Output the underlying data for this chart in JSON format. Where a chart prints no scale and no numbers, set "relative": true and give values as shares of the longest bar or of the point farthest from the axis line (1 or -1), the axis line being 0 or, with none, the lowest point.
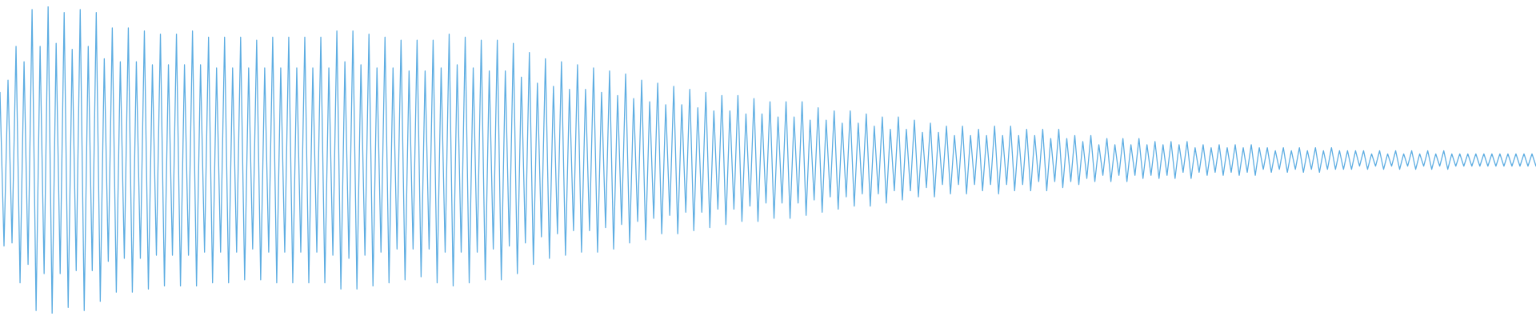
{
  "chart_data": {
    "type": "line",
    "relative": true,
    "color": "#5dade2",
    "categories": [
      null,
      null,
      null,
      null,
      null,
      null,
      null,
      null,
      null,
      null,
      null,
      null,
      null,
      null,
      null,
      null,
      null,
      null,
      null,
      null,
      null,
      null,
      null,
      null,
      null,
      null,
      null,
      null,
      null,
      null,
      null,
      null,
      null,
      null,
      null,
      null,
      null,
      null,
      null,
      null,
      null,
      null,
      null,
      null,
      null,
      null,
      null,
      null,
      null,
      null,
      null,
      null,
      null,
      null,
      null,
      null,
      null,
      null,
      null,
      null,
      null,
      null,
      null,
      null,
      null,
      null,
      null,
      null,
      null,
      null,
      null,
      null,
      null,
      null,
      null,
      null,
      null,
      null,
      null,
      null,
      null,
      null,
      null,
      null,
      null,
      null,
      null,
      null,
      null,
      null,
      null,
      null,
      null,
      null,
      null,
      null,
      null,
      null,
      null,
      null,
      null,
      null,
      null,
      null,
      null,
      null,
      null,
      null,
      null,
      null,
      null,
      null,
      null,
      null,
      null,
      null,
      null,
      null,
      null,
      null,
      null,
      null,
      null,
      null,
      null,
      null,
      null,
      null,
      null,
      null,
      null,
      null,
      null,
      null,
      null,
      null,
      null,
      null,
      null,
      null,
      null,
      null,
      null,
      null,
      null,
      null,
      null,
      null,
      null,
      null,
      null,
      null,
      null,
      null,
      null,
      null,
      null,
      null,
      null,
      null,
      null,
      null,
      null,
      null,
      null,
      null,
      null,
      null,
      null,
      null,
      null,
      null,
      null,
      null,
      null,
      null,
      null,
      null,
      null,
      null,
      null,
      null,
      null,
      null,
      null,
      null,
      null,
      null,
      null,
      null,
      null,
      null,
      null,
      null,
      null,
      null,
      null,
      null,
      null,
      null,
      null,
      null,
      null,
      null,
      null,
      null,
      null,
      null,
      null,
      null,
      null,
      null,
      null,
      null,
      null,
      null,
      null,
      null,
      null,
      null,
      null,
      null,
      null,
      null,
      null,
      null,
      null,
      null,
      null,
      null,
      null,
      null,
      null,
      null,
      null,
      null,
      null,
      null,
      null,
      null,
      null,
      null,
      null,
      null,
      null,
      null,
      null,
      null,
      null,
      null,
      null,
      null,
      null,
      null,
      null,
      null,
      null,
      null,
      null,
      null,
      null,
      null,
      null,
      null,
      null,
      null,
      null,
      null,
      null,
      null,
      null,
      null,
      null,
      null,
      null,
      null,
      null,
      null,
      null,
      null,
      null,
      null,
      null,
      null,
      null,
      null,
      null,
      null,
      null,
      null,
      null,
      null,
      null,
      null,
      null,
      null,
      null,
      null,
      null,
      null,
      null,
      null,
      null,
      null,
      null,
      null,
      null,
      null,
      null,
      null,
      null,
      null,
      null,
      null,
      null,
      null,
      null,
      null,
      null,
      null,
      null,
      null,
      null,
      null,
      null,
      null,
      null,
      null,
      null,
      null,
      null,
      null,
      null,
      null,
      null,
      null,
      null,
      null,
      null,
      null,
      null,
      null,
      null,
      null,
      null,
      null,
      null,
      null,
      null,
      null,
      null,
      null,
      null,
      null,
      null,
      null,
      null,
      null,
      null,
      null,
      null,
      null,
      null,
      null,
      null,
      null,
      null,
      null,
      null,
      null,
      null,
      null,
      null,
      null,
      null,
      null,
      null,
      null,
      null,
      null,
      null,
      null,
      null,
      null
    ],
    "values": [
      0.72,
      0.22,
      0.76,
      0.23,
      0.87,
      0.1,
      0.82,
      0.16,
      0.99,
      0.01,
      0.87,
      0.13,
      1.0,
      0.0,
      0.88,
      0.13,
      0.98,
      0.02,
      0.86,
      0.14,
      0.99,
      0.01,
      0.87,
      0.14,
      0.98,
      0.04,
      0.83,
      0.17,
      0.93,
      0.07,
      0.82,
      0.18,
      0.93,
      0.07,
      0.82,
      0.18,
      0.92,
      0.08,
      0.81,
      0.19,
      0.91,
      0.09,
      0.81,
      0.19,
      0.91,
      0.09,
      0.81,
      0.19,
      0.92,
      0.09,
      0.81,
      0.2,
      0.9,
      0.1,
      0.8,
      0.2,
      0.9,
      0.1,
      0.8,
      0.2,
      0.9,
      0.11,
      0.8,
      0.21,
      0.89,
      0.11,
      0.8,
      0.2,
      0.9,
      0.1,
      0.8,
      0.2,
      0.9,
      0.1,
      0.8,
      0.2,
      0.9,
      0.1,
      0.8,
      0.2,
      0.9,
      0.1,
      0.8,
      0.19,
      0.92,
      0.08,
      0.82,
      0.18,
      0.92,
      0.08,
      0.81,
      0.19,
      0.91,
      0.09,
      0.8,
      0.2,
      0.9,
      0.1,
      0.8,
      0.21,
      0.89,
      0.11,
      0.79,
      0.21,
      0.89,
      0.12,
      0.79,
      0.21,
      0.89,
      0.1,
      0.8,
      0.2,
      0.91,
      0.09,
      0.81,
      0.2,
      0.9,
      0.1,
      0.8,
      0.2,
      0.89,
      0.11,
      0.79,
      0.21,
      0.89,
      0.11,
      0.79,
      0.22,
      0.88,
      0.13,
      0.77,
      0.23,
      0.85,
      0.16,
      0.75,
      0.25,
      0.83,
      0.18,
      0.74,
      0.26,
      0.82,
      0.19,
      0.73,
      0.27,
      0.81,
      0.2,
      0.73,
      0.27,
      0.8,
      0.2,
      0.72,
      0.28,
      0.79,
      0.21,
      0.71,
      0.29,
      0.78,
      0.23,
      0.7,
      0.3,
      0.76,
      0.24,
      0.69,
      0.31,
      0.75,
      0.26,
      0.68,
      0.32,
      0.74,
      0.26,
      0.68,
      0.33,
      0.73,
      0.27,
      0.67,
      0.33,
      0.72,
      0.28,
      0.66,
      0.34,
      0.71,
      0.29,
      0.66,
      0.34,
      0.71,
      0.3,
      0.65,
      0.35,
      0.7,
      0.3,
      0.65,
      0.36,
      0.69,
      0.31,
      0.64,
      0.36,
      0.69,
      0.31,
      0.64,
      0.36,
      0.69,
      0.32,
      0.63,
      0.37,
      0.67,
      0.33,
      0.63,
      0.38,
      0.66,
      0.34,
      0.62,
      0.38,
      0.66,
      0.35,
      0.62,
      0.39,
      0.65,
      0.35,
      0.61,
      0.39,
      0.64,
      0.36,
      0.6,
      0.4,
      0.64,
      0.37,
      0.6,
      0.4,
      0.63,
      0.38,
      0.59,
      0.41,
      0.62,
      0.38,
      0.59,
      0.42,
      0.61,
      0.39,
      0.58,
      0.42,
      0.61,
      0.39,
      0.58,
      0.42,
      0.6,
      0.4,
      0.58,
      0.42,
      0.61,
      0.39,
      0.58,
      0.42,
      0.61,
      0.4,
      0.58,
      0.42,
      0.6,
      0.4,
      0.58,
      0.43,
      0.6,
      0.4,
      0.57,
      0.43,
      0.6,
      0.41,
      0.57,
      0.43,
      0.58,
      0.42,
      0.56,
      0.44,
      0.58,
      0.43,
      0.55,
      0.45,
      0.57,
      0.43,
      0.55,
      0.45,
      0.57,
      0.43,
      0.55,
      0.45,
      0.57,
      0.44,
      0.55,
      0.45,
      0.56,
      0.44,
      0.55,
      0.45,
      0.56,
      0.44,
      0.55,
      0.46,
      0.56,
      0.44,
      0.54,
      0.46,
      0.55,
      0.45,
      0.54,
      0.46,
      0.55,
      0.45,
      0.54,
      0.46,
      0.55,
      0.45,
      0.54,
      0.46,
      0.55,
      0.45,
      0.54,
      0.47,
      0.54,
      0.46,
      0.53,
      0.47,
      0.54,
      0.46,
      0.53,
      0.47,
      0.54,
      0.46,
      0.53,
      0.47,
      0.54,
      0.46,
      0.53,
      0.47,
      0.54,
      0.47,
      0.53,
      0.47,
      0.53,
      0.47,
      0.53,
      0.48,
      0.53,
      0.47,
      0.52,
      0.48,
      0.53,
      0.47,
      0.52,
      0.48,
      0.53,
      0.47,
      0.52,
      0.48,
      0.53,
      0.47,
      0.52,
      0.48,
      0.53,
      0.47,
      0.52,
      0.48,
      0.53,
      0.47,
      0.52,
      0.48,
      0.52,
      0.48,
      0.52,
      0.48,
      0.52,
      0.48,
      0.52,
      0.48,
      0.52,
      0.48,
      0.52,
      0.48,
      0.52,
      0.48,
      0.52,
      0.48,
      0.52,
      0.48,
      0.52,
      0.48
    ]
  }
}
